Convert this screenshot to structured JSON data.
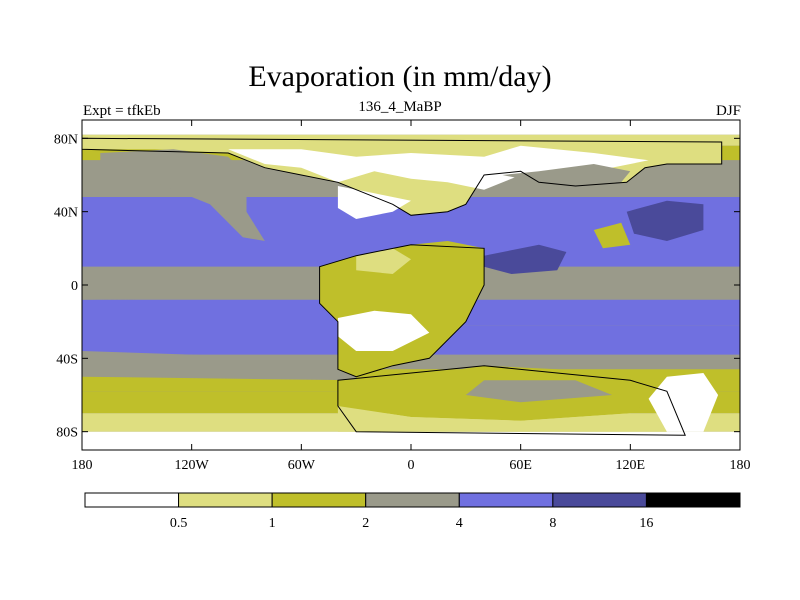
{
  "title": "Evaporation (in mm/day)",
  "left_label": "Expt = tfkEb",
  "center_label": "136_4_MaBP",
  "right_label": "DJF",
  "colors": {
    "lt0_5": "#ffffff",
    "b0_5_1": "#dede80",
    "b1_2": "#bfbf2a",
    "b2_4": "#9a9a8a",
    "b4_8": "#7070e0",
    "b8_16": "#4a4a9a",
    "gt16": "#000000",
    "coast": "#000000"
  },
  "map": {
    "projection": "cylindrical equidistant",
    "lon_range": [
      -180,
      180
    ],
    "lat_range": [
      -90,
      90
    ],
    "x_ticks": [
      {
        "value": -180,
        "label": "180"
      },
      {
        "value": -120,
        "label": "120W"
      },
      {
        "value": -60,
        "label": "60W"
      },
      {
        "value": 0,
        "label": "0"
      },
      {
        "value": 60,
        "label": "60E"
      },
      {
        "value": 120,
        "label": "120E"
      },
      {
        "value": 180,
        "label": "180"
      }
    ],
    "y_ticks": [
      {
        "value": 80,
        "label": "80N"
      },
      {
        "value": 40,
        "label": "40N"
      },
      {
        "value": 0,
        "label": "0"
      },
      {
        "value": -40,
        "label": "40S"
      },
      {
        "value": -80,
        "label": "80S"
      }
    ]
  },
  "colorbar": {
    "labels": [
      "0.5",
      "1",
      "2",
      "4",
      "8",
      "16"
    ],
    "colors": [
      "#ffffff",
      "#dede80",
      "#bfbf2a",
      "#9a9a8a",
      "#7070e0",
      "#4a4a9a",
      "#000000"
    ]
  }
}
